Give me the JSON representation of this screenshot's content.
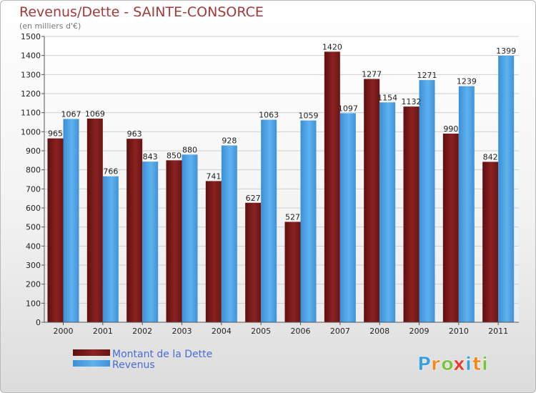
{
  "chart_data": {
    "type": "bar",
    "title": "Revenus/Dette - SAINTE-CONSORCE",
    "subtitle": "(en milliers d'€)",
    "categories": [
      "2000",
      "2001",
      "2002",
      "2003",
      "2004",
      "2005",
      "2006",
      "2007",
      "2008",
      "2009",
      "2010",
      "2011"
    ],
    "series": [
      {
        "name": "Montant de la Dette",
        "color": "#7b1c1c",
        "values": [
          965,
          1069,
          963,
          850,
          741,
          627,
          527,
          1420,
          1277,
          1132,
          990,
          842
        ]
      },
      {
        "name": "Revenus",
        "color": "#4aa0e2",
        "values": [
          1067,
          766,
          843,
          880,
          928,
          1063,
          1059,
          1097,
          1154,
          1271,
          1239,
          1399
        ]
      }
    ],
    "ylim": [
      0,
      1500
    ],
    "yticks": [
      0,
      100,
      200,
      300,
      400,
      500,
      600,
      700,
      800,
      900,
      1000,
      1100,
      1200,
      1300,
      1400,
      1500
    ],
    "grid": true,
    "legend": "bottom-left"
  },
  "branding": {
    "letters": [
      "P",
      "r",
      "o",
      "x",
      "i",
      "t",
      "i"
    ],
    "colors": [
      "#3aa0dd",
      "#f08a1c",
      "#7cc242",
      "#e63c2f",
      "#3aa0dd",
      "#f08a1c",
      "#7cc242"
    ]
  }
}
